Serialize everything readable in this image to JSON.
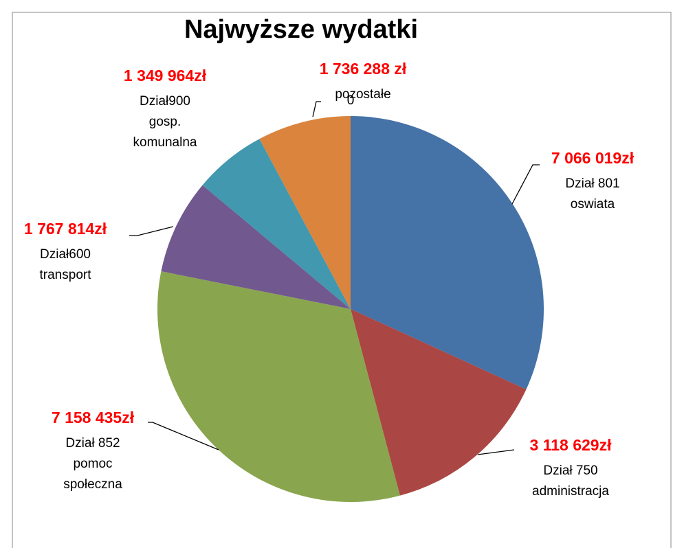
{
  "chart_data": {
    "type": "pie",
    "title": "Najwyższe wydatki",
    "categories": [
      "Dział 801\noswiata",
      "Dział 750\nadministracja",
      "Dział 852\npomoc\nspołeczna",
      "Dział600\ntransport",
      "Dział900\ngosp.\nkomunalna",
      "pozostałe"
    ],
    "values": [
      7066019,
      3118629,
      7158435,
      1767814,
      1349964,
      1736288
    ],
    "value_labels": [
      "7 066 019zł",
      "3 118 629zł",
      "7 158 435zł",
      "1 767 814zł",
      "1 349 964zł",
      "1 736 288 zł"
    ],
    "colors": [
      "#4572a7",
      "#aa4643",
      "#89a54e",
      "#71588f",
      "#4198af",
      "#db843d"
    ],
    "annotation": "0"
  }
}
